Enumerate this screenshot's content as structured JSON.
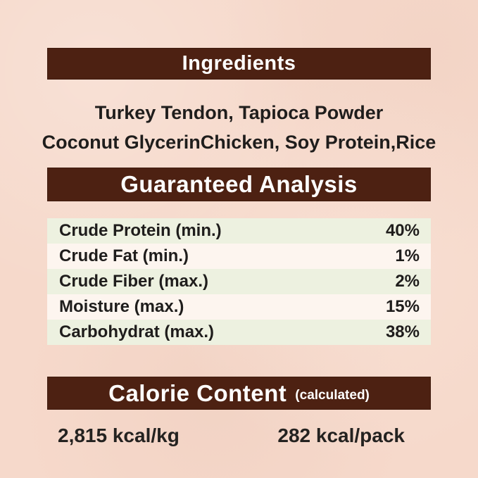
{
  "colors": {
    "background": "#f6d9cb",
    "header_bar": "#4d2112",
    "header_text": "#ffffff",
    "row_stripe_green": "#edf1e0",
    "row_stripe_light": "#fdf5ef",
    "body_text": "#1f1d1c"
  },
  "sections": {
    "ingredients": {
      "title": "Ingredients",
      "line1": "Turkey Tendon, Tapioca Powder",
      "line2": "Coconut GlycerinChicken, Soy Protein,Rice"
    },
    "guaranteed_analysis": {
      "title": "Guaranteed Analysis",
      "rows": [
        {
          "name": "Crude Protein (min.)",
          "value": "40%"
        },
        {
          "name": "Crude Fat (min.)",
          "value": "1%"
        },
        {
          "name": "Crude Fiber (max.)",
          "value": "2%"
        },
        {
          "name": "Moisture (max.)",
          "value": "15%"
        },
        {
          "name": "Carbohydrat (max.)",
          "value": "38%"
        }
      ]
    },
    "calorie_content": {
      "title": "Calorie Content",
      "subtitle": "(calculated)",
      "per_kg": "2,815 kcal/kg",
      "per_pack": "282 kcal/pack"
    }
  }
}
